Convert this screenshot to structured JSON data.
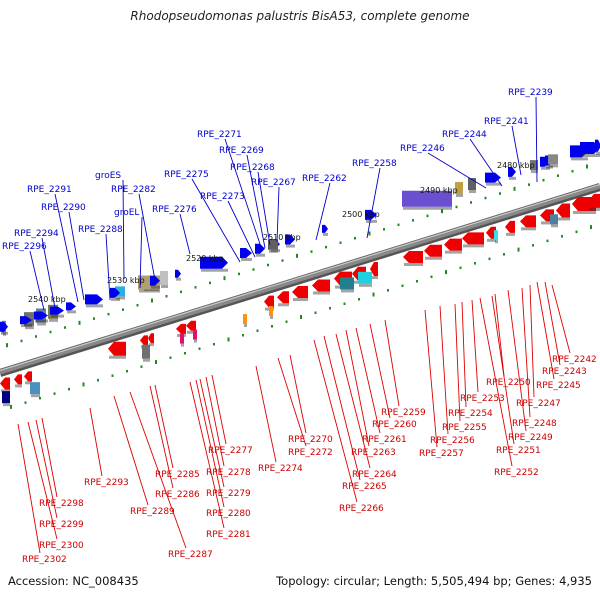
{
  "title": "Rhodopseudomonas palustris BisA53, complete genome",
  "footer": {
    "accession": "Accession: NC_008435",
    "summary": "Topology: circular; Length: 5,505,494 bp; Genes: 4,935"
  },
  "colors": {
    "forward_gene": "#0000ee",
    "reverse_gene": "#ee0000",
    "top_label": "#0000cc",
    "bottom_label": "#cc0000",
    "backbone": "#888888",
    "tick": "#228822"
  },
  "tick_labels": [
    "2480 kbp",
    "2490 kbp",
    "2500 kbp",
    "2510 kbp",
    "2520 kbp",
    "2530 kbp",
    "2540 kbp"
  ],
  "top_labels": [
    "RPE_2239",
    "RPE_2241",
    "RPE_2244",
    "RPE_2246",
    "RPE_2258",
    "RPE_2262",
    "RPE_2267",
    "RPE_2268",
    "RPE_2269",
    "RPE_2271",
    "RPE_2273",
    "RPE_2275",
    "RPE_2276",
    "groES",
    "RPE_2282",
    "groEL",
    "RPE_2288",
    "RPE_2290",
    "RPE_2291",
    "RPE_2294",
    "RPE_2296"
  ],
  "bottom_labels": [
    "RPE_2242",
    "RPE_2243",
    "RPE_2245",
    "RPE_2247",
    "RPE_2248",
    "RPE_2249",
    "RPE_2250",
    "RPE_2251",
    "RPE_2252",
    "RPE_2253",
    "RPE_2254",
    "RPE_2255",
    "RPE_2256",
    "RPE_2257",
    "RPE_2259",
    "RPE_2260",
    "RPE_2261",
    "RPE_2263",
    "RPE_2264",
    "RPE_2265",
    "RPE_2266",
    "RPE_2270",
    "RPE_2272",
    "RPE_2274",
    "RPE_2277",
    "RPE_2278",
    "RPE_2279",
    "RPE_2280",
    "RPE_2281",
    "RPE_2285",
    "RPE_2286",
    "RPE_2287",
    "RPE_2289",
    "RPE_2293",
    "RPE_2298",
    "RPE_2299",
    "RPE_2300",
    "RPE_2302"
  ]
}
